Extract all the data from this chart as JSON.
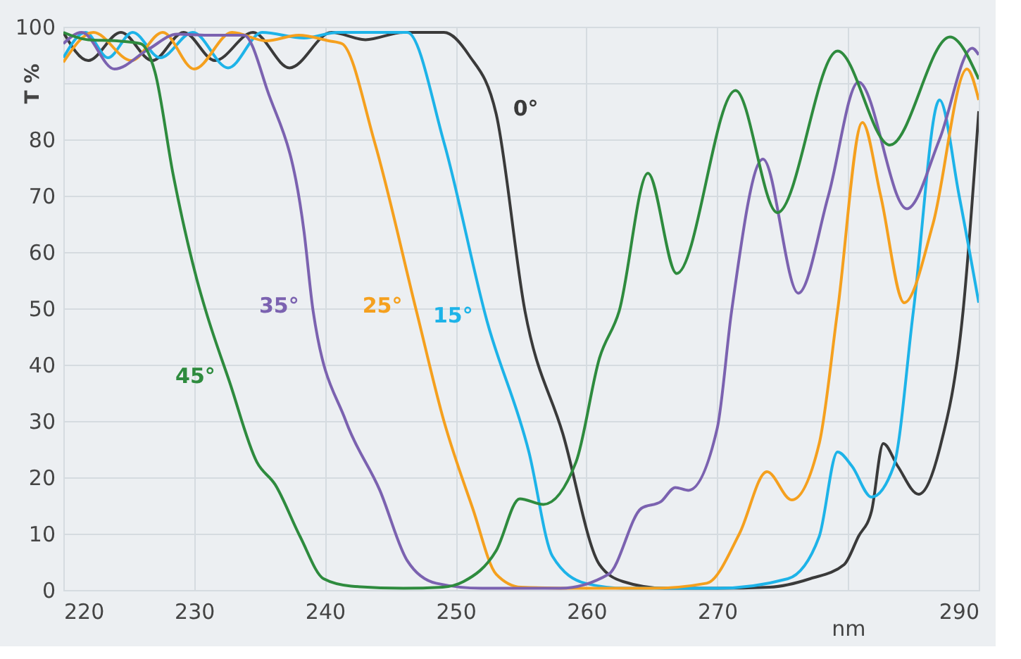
{
  "chart_data": {
    "type": "line",
    "xlabel": "nm",
    "ylabel": "T %",
    "xlim": [
      220,
      290
    ],
    "xticks": [
      220,
      230,
      240,
      250,
      260,
      270,
      {
        "value": 280,
        "label": null
      },
      290
    ],
    "ylim": [
      0,
      100
    ],
    "yticks": [
      0,
      10,
      20,
      30,
      40,
      50,
      60,
      70,
      80,
      {
        "value": 90,
        "label": null
      },
      100
    ],
    "grid": true,
    "marker": "none",
    "line_style": "solid",
    "series": [
      {
        "name": "0°",
        "color": "#3a3a3a",
        "x": [
          220,
          221.9,
          224.4,
          226.8,
          229.2,
          231.6,
          234.5,
          237.3,
          240.5,
          243.1,
          246,
          249.1,
          251,
          253.1,
          255.3,
          258.2,
          261,
          262.8,
          266,
          270,
          274,
          277.1,
          279.7,
          280.8,
          281.8,
          282.7,
          283.8,
          285.4,
          287,
          288.8,
          290
        ],
        "values": [
          99,
          94,
          99,
          94,
          99,
          94,
          99,
          92.7,
          99,
          97.7,
          99,
          99,
          95,
          84.5,
          49.5,
          27.7,
          4.5,
          1.5,
          0.3,
          0.3,
          0.5,
          2,
          4.5,
          9.5,
          14,
          26,
          22,
          17,
          25,
          49.5,
          85
        ]
      },
      {
        "name": "15°",
        "color": "#1db3e8",
        "x": [
          220,
          221.7,
          223.4,
          225.3,
          227.4,
          229.9,
          232.6,
          235.2,
          238.4,
          241,
          244,
          246.3,
          249.1,
          252.4,
          255.6,
          257.4,
          259.9,
          263,
          270,
          275.4,
          277.8,
          279.2,
          280.3,
          281.8,
          283.5,
          285,
          287,
          288.5,
          290
        ],
        "values": [
          94.5,
          99,
          94.5,
          99,
          94.5,
          99,
          92.7,
          99,
          98,
          99,
          99,
          99,
          79.5,
          47.7,
          24.5,
          6,
          1.2,
          0.3,
          0.3,
          2,
          9.5,
          24.5,
          22,
          16.5,
          22,
          49.5,
          87,
          70,
          51
        ]
      },
      {
        "name": "25°",
        "color": "#f5a01e",
        "x": [
          220,
          222.3,
          225.2,
          227.6,
          230,
          232.9,
          235.5,
          238,
          240.3,
          241.3,
          243.8,
          247,
          249.1,
          251.3,
          253.1,
          255,
          260,
          265,
          269.2,
          271.7,
          273.8,
          275.7,
          277.8,
          279.2,
          281.1,
          282.5,
          284.3,
          286.5,
          289.1,
          290
        ],
        "values": [
          93.7,
          99,
          94,
          99,
          92.5,
          99,
          97.5,
          98.5,
          97.5,
          97,
          79.5,
          49.5,
          30,
          14.5,
          2.8,
          0.5,
          0.3,
          0.3,
          1.2,
          10,
          21,
          16,
          26,
          49.5,
          83,
          70,
          51,
          65,
          92.5,
          87
        ]
      },
      {
        "name": "35°",
        "color": "#7b62b0",
        "x": [
          220,
          221.4,
          223.9,
          226.5,
          228.7,
          231,
          233.8,
          235.6,
          238.4,
          239.1,
          241.6,
          244.2,
          246.3,
          248.5,
          252,
          258,
          261.7,
          264.2,
          265.7,
          266.8,
          267.8,
          270,
          271.1,
          273.5,
          276.2,
          278.5,
          280.8,
          284.5,
          287,
          289.5,
          290
        ],
        "values": [
          97,
          99,
          92.5,
          96,
          98.7,
          98.5,
          98.5,
          88.7,
          63.7,
          49.5,
          30,
          17.7,
          5.2,
          1.2,
          0.3,
          0.3,
          2.8,
          14.5,
          15.7,
          18.2,
          17.7,
          28.7,
          49.5,
          76.5,
          52.7,
          70,
          90.2,
          67.7,
          80,
          96.2,
          95
        ]
      },
      {
        "name": "45°",
        "color": "#2e8b3e",
        "x": [
          220,
          221.9,
          224.1,
          225.9,
          227,
          228.4,
          230.2,
          230.9,
          232.7,
          234.8,
          236.2,
          238.1,
          239.9,
          242,
          246,
          249,
          250.6,
          253.1,
          254.9,
          256.7,
          259.2,
          261,
          262.5,
          264.7,
          266.9,
          271.4,
          274.6,
          279.2,
          283.2,
          287.8,
          290
        ],
        "values": [
          99,
          97.7,
          97.5,
          97,
          92,
          73.7,
          55.2,
          49.5,
          37,
          22.7,
          18.7,
          9.5,
          2,
          0.7,
          0.3,
          0.5,
          1.5,
          7,
          16.2,
          15.2,
          22.7,
          41.2,
          49.5,
          74,
          56.2,
          88.7,
          67,
          95.7,
          79,
          98.2,
          90.7
        ]
      }
    ]
  }
}
